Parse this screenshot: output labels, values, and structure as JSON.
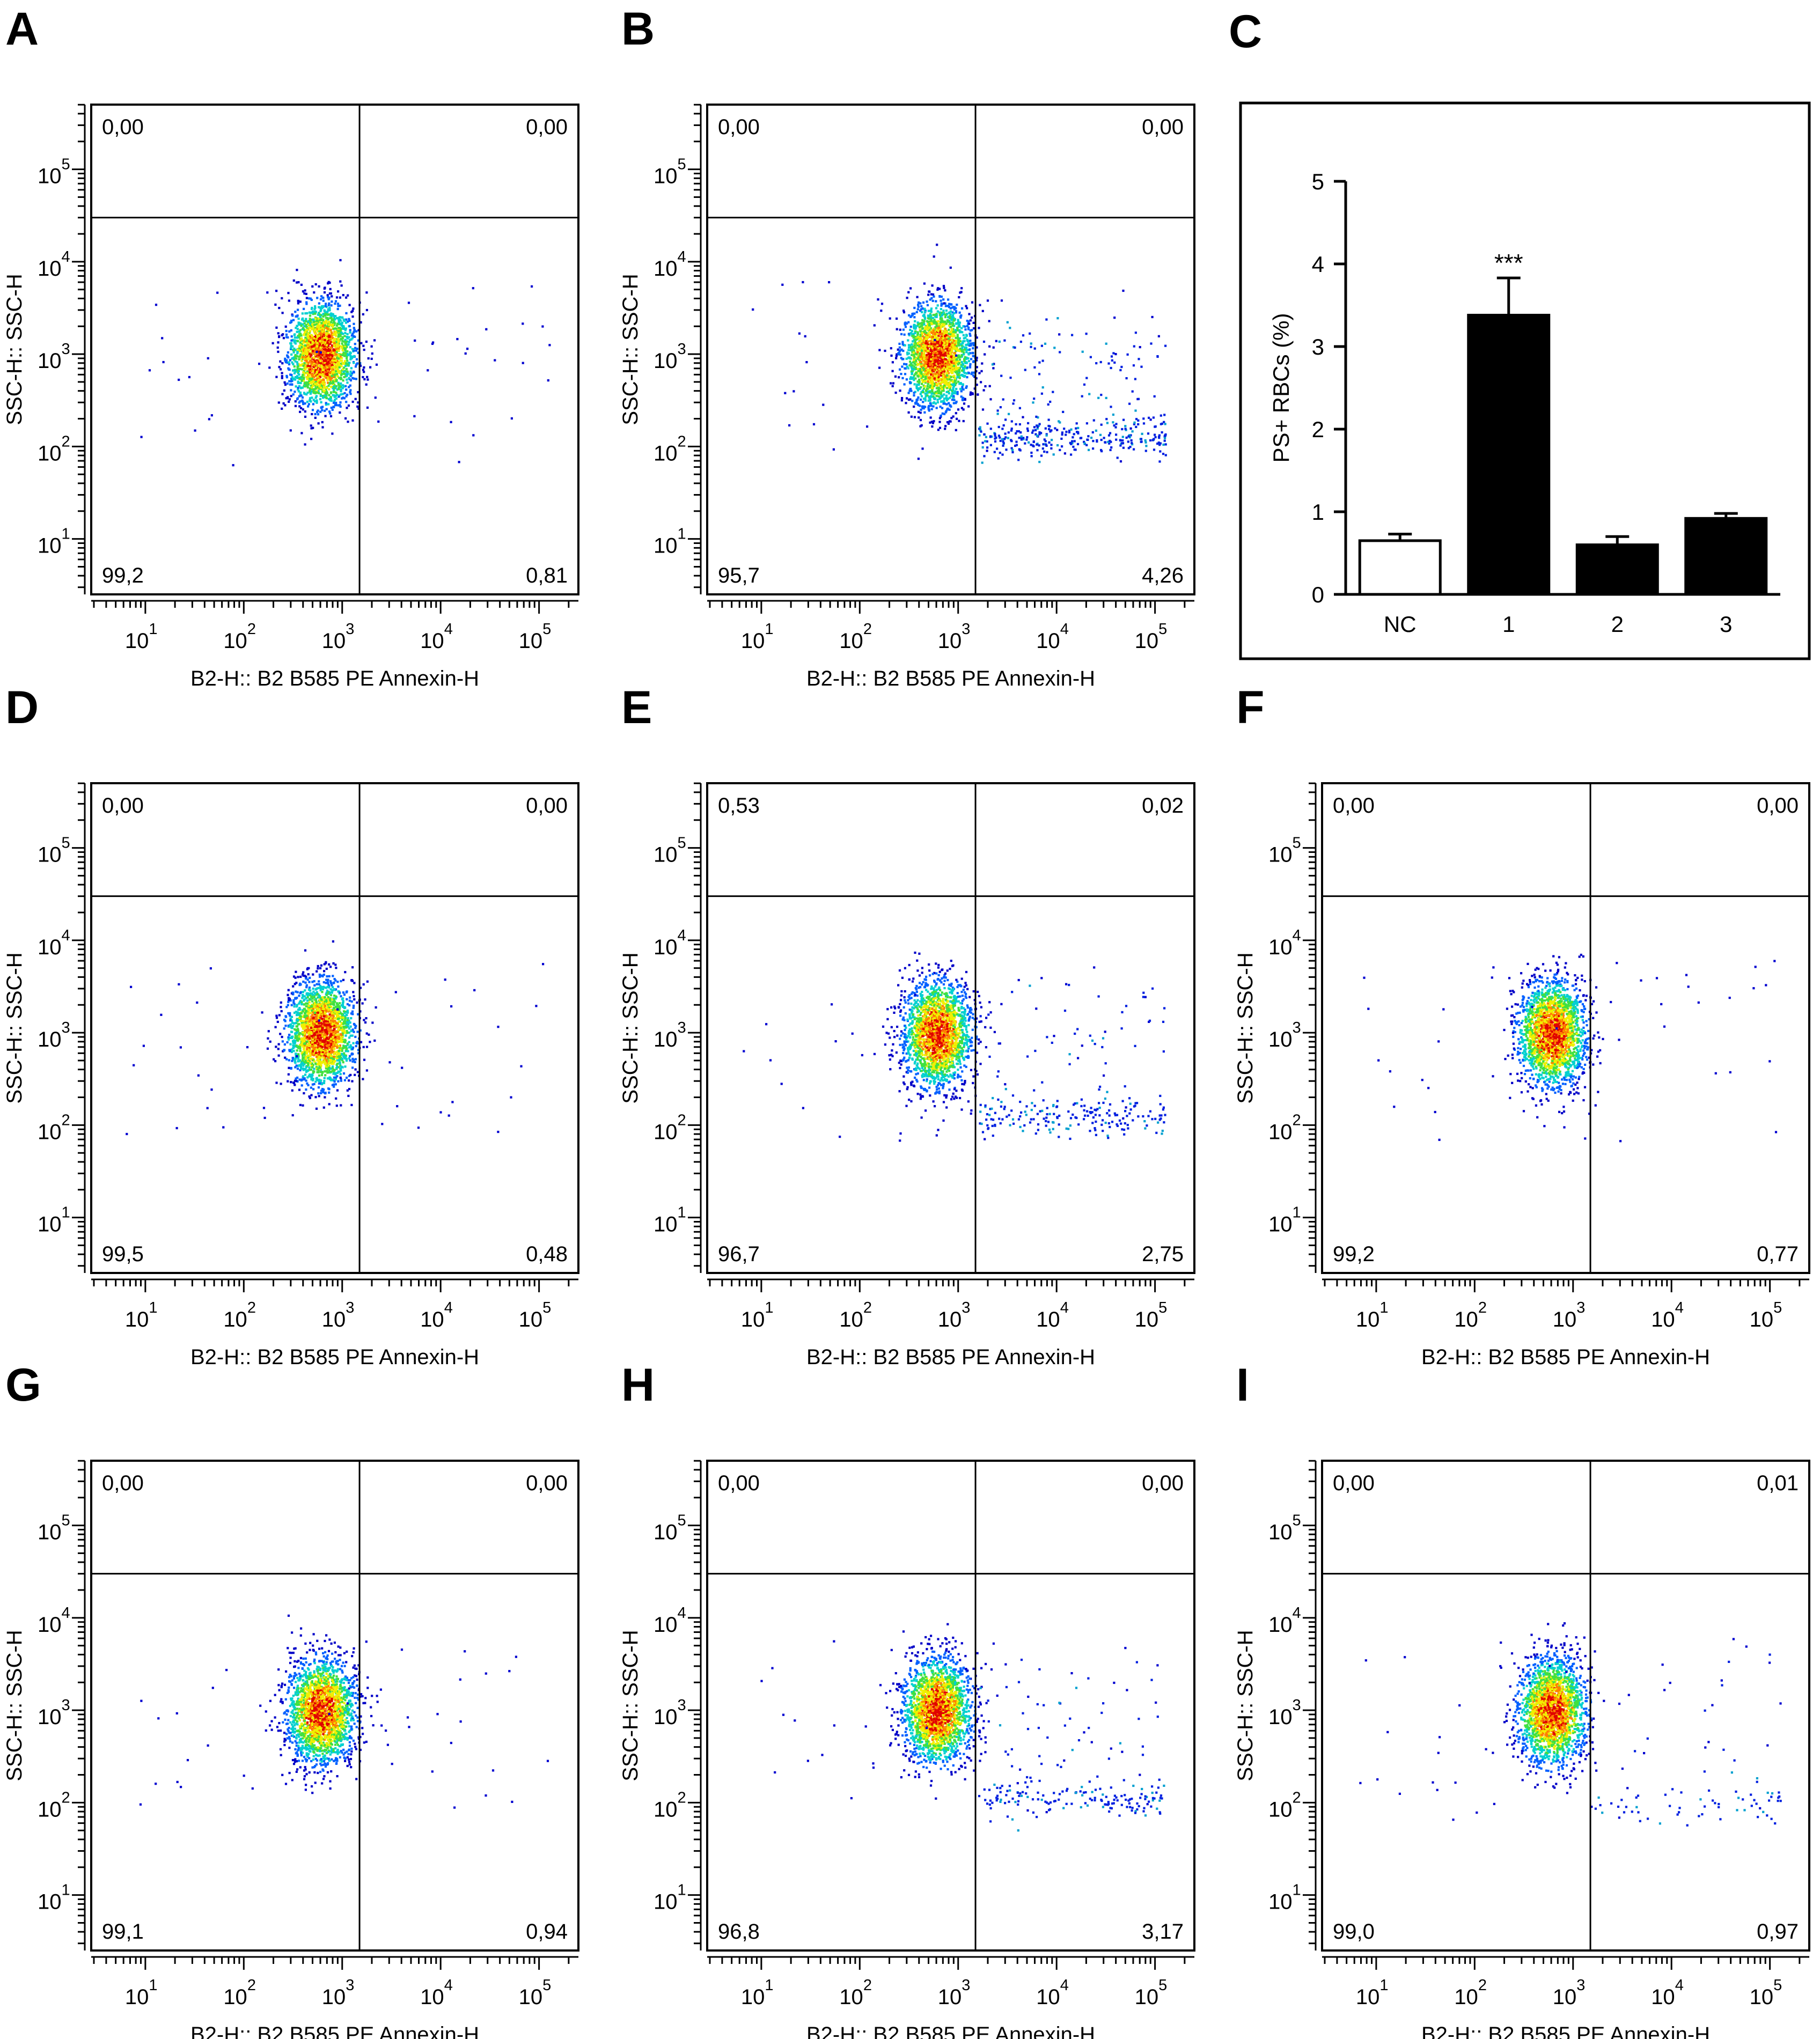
{
  "figure": {
    "xlabel": "B2-H:: B2 B585 PE Annexin-H",
    "ylabel": "SSC-H:: SSC-H",
    "panels": [
      {
        "letter": "A",
        "q": {
          "tl": "0,00",
          "tr": "0,00",
          "bl": "99,2",
          "br": "0,81"
        }
      },
      {
        "letter": "B",
        "q": {
          "tl": "0,00",
          "tr": "0,00",
          "bl": "95,7",
          "br": "4,26"
        }
      },
      {
        "letter": "D",
        "q": {
          "tl": "0,00",
          "tr": "0,00",
          "bl": "99,5",
          "br": "0,48"
        }
      },
      {
        "letter": "E",
        "q": {
          "tl": "0,53",
          "tr": "0,02",
          "bl": "96,7",
          "br": "2,75"
        }
      },
      {
        "letter": "F",
        "q": {
          "tl": "0,00",
          "tr": "0,00",
          "bl": "99,2",
          "br": "0,77"
        }
      },
      {
        "letter": "G",
        "q": {
          "tl": "0,00",
          "tr": "0,00",
          "bl": "99,1",
          "br": "0,94"
        }
      },
      {
        "letter": "H",
        "q": {
          "tl": "0,00",
          "tr": "0,00",
          "bl": "96,8",
          "br": "3,17"
        }
      },
      {
        "letter": "I",
        "q": {
          "tl": "0,00",
          "tr": "0,01",
          "bl": "99,0",
          "br": "0,97"
        }
      }
    ],
    "tick_labels": [
      "1",
      "2",
      "3",
      "4",
      "5"
    ],
    "tick_base": "10"
  },
  "chart_data": [
    {
      "panel": "C",
      "type": "bar",
      "categories": [
        "NC",
        "1",
        "2",
        "3"
      ],
      "values": [
        0.65,
        3.38,
        0.6,
        0.92
      ],
      "errors": [
        0.08,
        0.45,
        0.1,
        0.06
      ],
      "fills": [
        "#ffffff",
        "#000000",
        "#000000",
        "#000000"
      ],
      "significance": [
        "",
        "***",
        "",
        ""
      ],
      "ylabel": "PS+ RBCs (%)",
      "ylim": [
        0,
        5
      ],
      "yticks": [
        0,
        1,
        2,
        3,
        4,
        5
      ]
    },
    {
      "type": "scatter",
      "description": "flow cytometry density plots A, B, D–I",
      "x_scale": "log",
      "y_scale": "log",
      "xlabel": "B2-H:: B2 B585 PE Annexin-H",
      "ylabel": "SSC-H:: SSC-H",
      "x_gate": 1500,
      "y_gate": 30000,
      "main_population_center": {
        "x": 600,
        "y": 1000
      }
    }
  ]
}
